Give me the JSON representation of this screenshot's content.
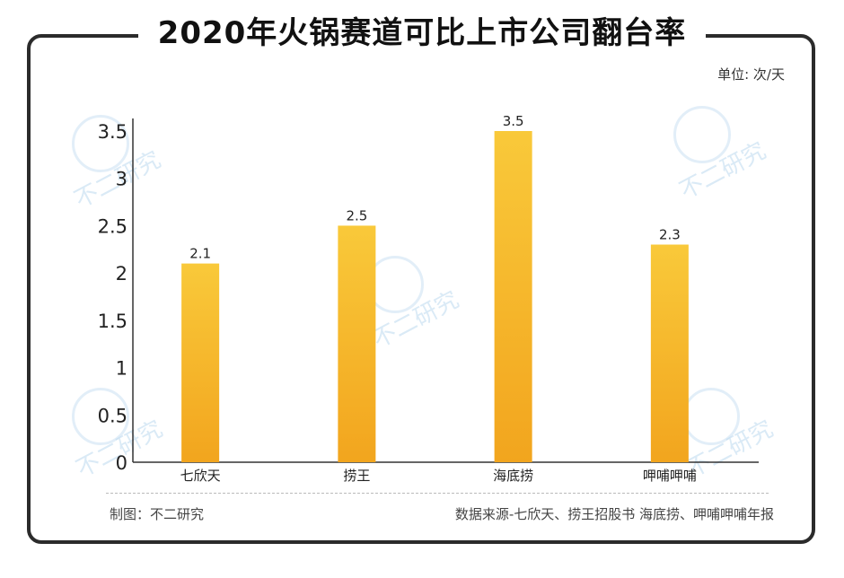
{
  "title": "2020年火锅赛道可比上市公司翻台率",
  "unit": "单位: 次/天",
  "footer": {
    "credit": "制图：不二研究",
    "source": "数据来源-七欣天、捞王招股书 海底捞、呷哺呷哺年报"
  },
  "watermark": "不二研究",
  "colors": {
    "bar_top": "#F9C93A",
    "bar_bottom": "#F2A51E",
    "frame": "#2b2b2b"
  },
  "chart_data": {
    "type": "bar",
    "title": "2020年火锅赛道可比上市公司翻台率",
    "categories": [
      "七欣天",
      "捞王",
      "海底捞",
      "呷哺呷哺"
    ],
    "values": [
      2.1,
      2.5,
      3.5,
      2.3
    ],
    "data_labels": [
      "2.1",
      "2.5",
      "3.5",
      "2.3"
    ],
    "ylim": [
      0,
      3.5
    ],
    "yticks": [
      0,
      0.5,
      1,
      1.5,
      2,
      2.5,
      3,
      3.5
    ],
    "ytick_labels": [
      "0",
      "0.5",
      "1",
      "1.5",
      "2",
      "2.5",
      "3",
      "3.5"
    ],
    "xlabel": "",
    "ylabel": "",
    "grid": false,
    "legend": "none"
  }
}
